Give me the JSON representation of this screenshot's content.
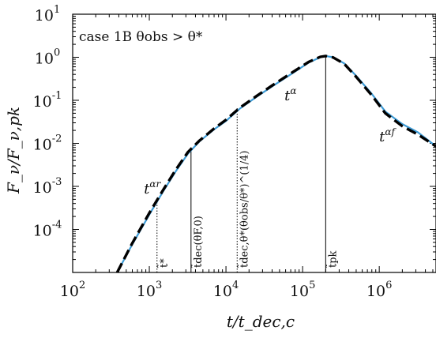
{
  "chart_data": {
    "type": "line",
    "title": "",
    "annotation_case": "case 1B θobs > θ*",
    "xlabel": "t/t_dec,c",
    "ylabel": "F_ν/F_ν,pk",
    "x_scale": "log",
    "y_scale": "log",
    "xlim": [
      100,
      5500000
    ],
    "ylim": [
      1e-05,
      10
    ],
    "x_ticks": [
      {
        "base": "10",
        "exp": "2",
        "value": 100
      },
      {
        "base": "10",
        "exp": "3",
        "value": 1000
      },
      {
        "base": "10",
        "exp": "4",
        "value": 10000
      },
      {
        "base": "10",
        "exp": "5",
        "value": 100000
      },
      {
        "base": "10",
        "exp": "6",
        "value": 1000000
      }
    ],
    "y_ticks": [
      {
        "base": "10",
        "exp": "1",
        "value": 10
      },
      {
        "base": "10",
        "exp": "0",
        "value": 1
      },
      {
        "base": "10",
        "exp": "-1",
        "value": 0.1
      },
      {
        "base": "10",
        "exp": "-2",
        "value": 0.01
      },
      {
        "base": "10",
        "exp": "-3",
        "value": 0.001
      },
      {
        "base": "10",
        "exp": "-4",
        "value": 0.0001
      }
    ],
    "series": [
      {
        "style": "solid",
        "color": "#3d9bd6",
        "x": [
          380,
          600,
          1000,
          1500,
          2200,
          3200,
          4500,
          7000,
          10000,
          15000,
          25000,
          40000,
          70000,
          120000,
          170000,
          200000,
          250000,
          350000,
          500000,
          800000,
          1200000,
          2000000,
          3200000,
          5500000
        ],
        "y": [
          1e-05,
          4.5e-05,
          0.00022,
          0.00074,
          0.0022,
          0.0058,
          0.011,
          0.021,
          0.033,
          0.063,
          0.12,
          0.21,
          0.4,
          0.75,
          1.0,
          1.07,
          1.0,
          0.72,
          0.37,
          0.14,
          0.055,
          0.028,
          0.018,
          0.0085
        ]
      },
      {
        "style": "dashed",
        "color": "#000000",
        "x": [
          380,
          600,
          1000,
          1500,
          2200,
          3200,
          4500,
          7000,
          10000,
          15000,
          25000,
          40000,
          70000,
          120000,
          170000,
          200000,
          250000,
          350000,
          500000,
          800000,
          1200000,
          2000000,
          3200000,
          5500000
        ],
        "y": [
          1e-05,
          4.8e-05,
          0.00024,
          0.0008,
          0.0024,
          0.0063,
          0.0115,
          0.022,
          0.035,
          0.066,
          0.125,
          0.22,
          0.42,
          0.78,
          1.02,
          1.07,
          0.99,
          0.7,
          0.35,
          0.13,
          0.05,
          0.025,
          0.016,
          0.0085
        ]
      }
    ],
    "vlines": [
      {
        "x": 1260,
        "y_top": 0.00044,
        "style": "dotted",
        "label": "t̃*"
      },
      {
        "x": 3500,
        "y_top": 0.008,
        "style": "solid",
        "label": "t̃dec(θF,0)"
      },
      {
        "x": 14000,
        "y_top": 0.07,
        "style": "dotted",
        "label": "t̃dec,θ*(θobs/θ*)^(1/4)"
      },
      {
        "x": 200000,
        "y_top": 1.07,
        "style": "solid",
        "label": "t̃pk"
      }
    ],
    "slope_labels": [
      {
        "x": 850,
        "y": 0.00068,
        "base": "t",
        "exp": "αr"
      },
      {
        "x": 58000,
        "y": 0.1,
        "base": "t",
        "exp": "α"
      },
      {
        "x": 1000000,
        "y": 0.011,
        "base": "t",
        "exp": "αf"
      }
    ]
  }
}
